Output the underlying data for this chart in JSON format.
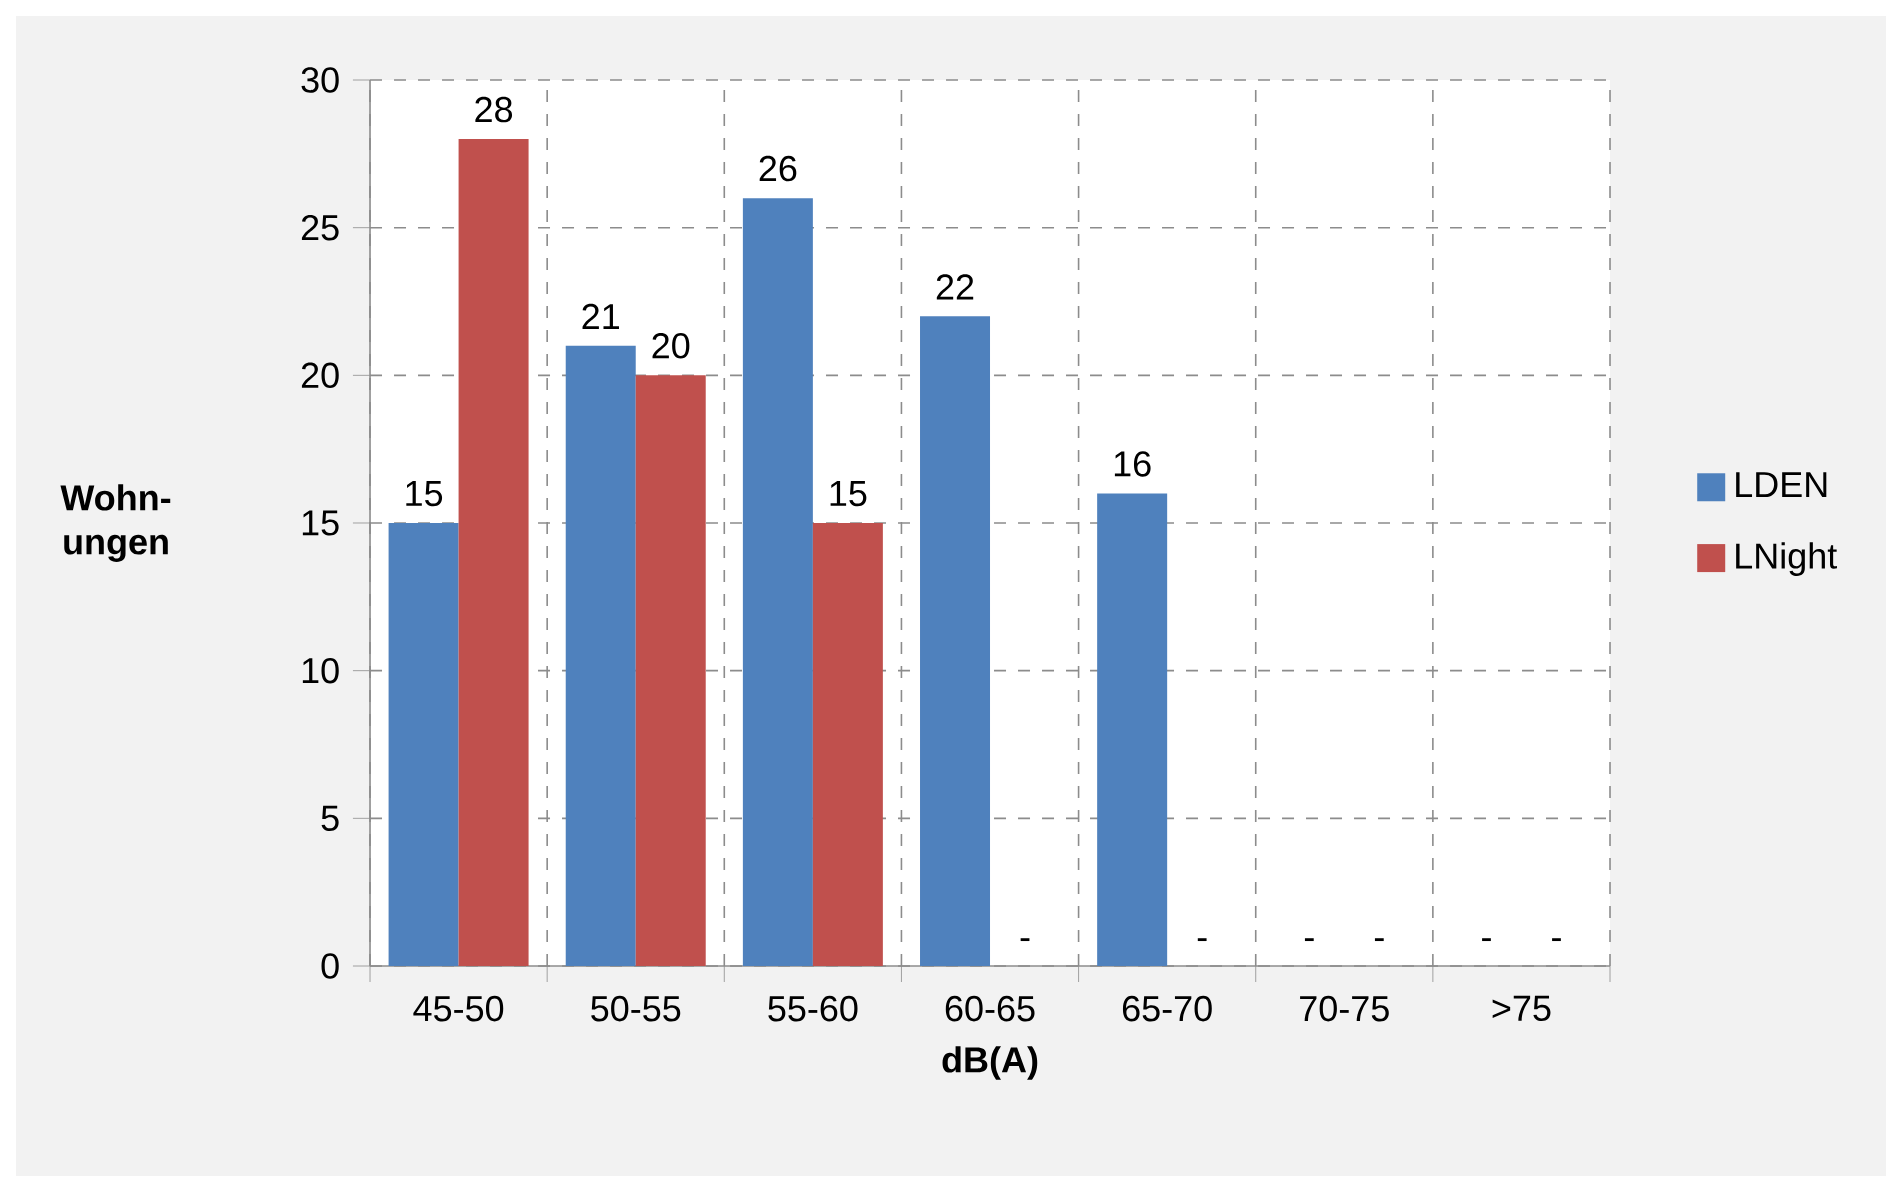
{
  "chart_data": {
    "type": "bar",
    "xlabel": "dB(A)",
    "ylabel": "Wohn- ungen",
    "categories": [
      "45-50",
      "50-55",
      "55-60",
      "60-65",
      "65-70",
      "70-75",
      ">75"
    ],
    "series": [
      {
        "name": "LDEN",
        "color": "#4f81bd",
        "values": [
          15,
          21,
          26,
          22,
          16,
          null,
          null
        ],
        "value_labels": [
          "15",
          "21",
          "26",
          "22",
          "16",
          "-",
          "-"
        ]
      },
      {
        "name": "LNight",
        "color": "#c0504d",
        "values": [
          28,
          20,
          15,
          null,
          null,
          null,
          null
        ],
        "value_labels": [
          "28",
          "20",
          "15",
          "-",
          "-",
          "-",
          "-"
        ]
      }
    ],
    "ylim": [
      0,
      30
    ],
    "yticks": [
      0,
      5,
      10,
      15,
      20,
      25,
      30
    ],
    "grid": true,
    "legend": "right"
  }
}
